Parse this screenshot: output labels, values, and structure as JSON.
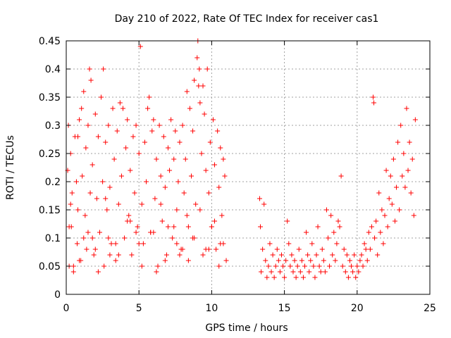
{
  "chart_data": {
    "type": "scatter",
    "title": "Day 210 of 2022, Rate Of TEC Index for receiver cas1",
    "xlabel": "GPS time / hours",
    "ylabel": "ROTI / TECUs",
    "xlim": [
      0,
      25
    ],
    "ylim": [
      0,
      0.45
    ],
    "xticks": [
      "0",
      "5",
      "10",
      "15",
      "20",
      "25"
    ],
    "yticks": [
      "0",
      "0.05",
      "0.1",
      "0.15",
      "0.2",
      "0.25",
      "0.3",
      "0.35",
      "0.4",
      "0.45"
    ],
    "grid": true,
    "marker": "+",
    "color": "#ff0000",
    "series": [
      {
        "x": [
          0.1,
          0.15,
          0.2,
          0.3,
          0.35,
          0.4,
          0.5,
          0.6,
          0.7,
          0.75,
          0.8,
          0.9,
          1.0,
          1.05,
          1.1,
          1.2,
          1.3,
          1.35,
          1.4,
          1.5,
          1.6,
          1.65,
          1.7,
          1.8,
          1.9,
          2.0,
          2.1,
          2.2,
          2.3,
          2.4,
          2.5,
          2.55,
          2.6,
          2.7,
          2.8,
          2.9,
          3.0,
          3.1,
          3.2,
          3.3,
          3.4,
          3.5,
          3.6,
          3.7,
          3.8,
          3.9,
          4.0,
          4.1,
          4.2,
          4.3,
          4.4,
          4.5,
          4.6,
          4.7,
          4.8,
          4.9,
          5.0,
          5.1,
          5.2,
          5.3,
          5.4,
          5.5,
          5.6,
          5.7,
          5.8,
          5.9,
          6.0,
          6.1,
          6.2,
          6.3,
          6.4,
          6.5,
          6.6,
          6.7,
          6.8,
          6.9,
          7.0,
          7.1,
          7.2,
          7.3,
          7.4,
          7.5,
          7.6,
          7.7,
          7.8,
          7.9,
          8.0,
          8.1,
          8.2,
          8.3,
          8.4,
          8.5,
          8.6,
          8.7,
          8.8,
          8.9,
          9.0,
          9.05,
          9.1,
          9.15,
          9.2,
          9.3,
          9.4,
          9.5,
          9.6,
          9.7,
          9.8,
          9.9,
          10.0,
          10.1,
          10.2,
          10.3,
          10.4,
          10.5,
          10.6,
          10.7,
          10.8,
          10.9,
          11.0,
          0.3,
          0.8,
          1.2,
          2.2,
          2.7,
          3.4,
          4.2,
          5.2,
          5.8,
          6.5,
          7.0,
          7.8,
          8.3,
          8.7,
          9.2,
          9.6,
          10.2,
          10.6,
          0.2,
          0.9,
          1.5,
          2.0,
          2.9,
          3.6,
          4.4,
          5.0,
          6.0,
          6.8,
          7.4,
          8.0,
          8.8,
          9.4,
          10.0,
          10.8,
          0.5,
          1.8,
          3.0,
          4.8,
          6.2,
          7.6,
          8.4,
          9.8,
          10.5
        ],
        "y": [
          0.22,
          0.3,
          0.05,
          0.25,
          0.12,
          0.18,
          0.04,
          0.28,
          0.2,
          0.09,
          0.15,
          0.31,
          0.06,
          0.33,
          0.21,
          0.36,
          0.14,
          0.26,
          0.08,
          0.3,
          0.4,
          0.18,
          0.38,
          0.23,
          0.07,
          0.32,
          0.17,
          0.28,
          0.11,
          0.35,
          0.2,
          0.4,
          0.05,
          0.27,
          0.15,
          0.3,
          0.19,
          0.09,
          0.33,
          0.24,
          0.06,
          0.29,
          0.16,
          0.34,
          0.21,
          0.33,
          0.1,
          0.26,
          0.31,
          0.14,
          0.22,
          0.07,
          0.28,
          0.18,
          0.3,
          0.12,
          0.25,
          0.44,
          0.16,
          0.09,
          0.27,
          0.2,
          0.33,
          0.35,
          0.11,
          0.29,
          0.31,
          0.17,
          0.24,
          0.05,
          0.3,
          0.21,
          0.13,
          0.28,
          0.19,
          0.07,
          0.26,
          0.22,
          0.31,
          0.1,
          0.24,
          0.29,
          0.15,
          0.2,
          0.27,
          0.08,
          0.3,
          0.18,
          0.24,
          0.36,
          0.12,
          0.33,
          0.21,
          0.29,
          0.38,
          0.16,
          0.42,
          0.45,
          0.37,
          0.4,
          0.34,
          0.25,
          0.37,
          0.32,
          0.22,
          0.4,
          0.18,
          0.27,
          0.12,
          0.31,
          0.23,
          0.08,
          0.29,
          0.19,
          0.26,
          0.14,
          0.24,
          0.21,
          0.06,
          0.16,
          0.28,
          0.1,
          0.04,
          0.17,
          0.09,
          0.13,
          0.05,
          0.11,
          0.16,
          0.12,
          0.07,
          0.14,
          0.1,
          0.15,
          0.08,
          0.13,
          0.09,
          0.12,
          0.06,
          0.11,
          0.08,
          0.1,
          0.07,
          0.13,
          0.09,
          0.11,
          0.06,
          0.12,
          0.08,
          0.1,
          0.07,
          0.12,
          0.09,
          0.05,
          0.1,
          0.07,
          0.11,
          0.04,
          0.09,
          0.06,
          0.08,
          0.05
        ]
      },
      {
        "x": [
          13.3,
          13.35,
          13.4,
          13.5,
          13.6,
          13.7,
          13.8,
          13.9,
          14.0,
          14.1,
          14.2,
          14.3,
          14.4,
          14.5,
          14.6,
          14.7,
          14.8,
          14.9,
          15.0,
          15.1,
          15.2,
          15.3,
          15.4,
          15.5,
          15.6,
          15.7,
          15.8,
          15.9,
          16.0,
          16.1,
          16.2,
          16.3,
          16.4,
          16.5,
          16.6,
          16.7,
          16.8,
          16.9,
          17.0,
          17.1,
          17.2,
          17.3,
          17.4,
          17.5,
          17.6,
          17.7,
          17.8,
          17.9,
          18.0,
          18.1,
          18.2,
          18.3,
          18.4,
          18.5,
          18.6,
          18.7,
          18.8,
          18.9,
          19.0,
          19.1,
          19.2,
          19.3,
          19.4,
          19.5,
          19.6,
          19.7,
          19.8,
          19.9,
          20.0,
          20.1,
          20.2,
          20.3,
          20.4,
          20.5,
          20.6,
          20.7,
          20.8,
          20.9,
          21.0,
          21.1,
          21.15,
          21.2,
          21.3,
          21.4,
          21.5,
          21.6,
          21.7,
          21.8,
          21.9,
          22.0,
          22.1,
          22.2,
          22.3,
          22.4,
          22.5,
          22.6,
          22.7,
          22.8,
          22.9,
          23.0,
          23.1,
          23.2,
          23.3,
          23.4,
          23.5,
          23.6,
          23.7,
          23.8,
          23.9,
          24.0
        ],
        "y": [
          0.17,
          0.12,
          0.04,
          0.08,
          0.16,
          0.06,
          0.03,
          0.05,
          0.09,
          0.04,
          0.07,
          0.03,
          0.05,
          0.08,
          0.06,
          0.04,
          0.07,
          0.05,
          0.03,
          0.06,
          0.13,
          0.09,
          0.05,
          0.07,
          0.04,
          0.06,
          0.03,
          0.05,
          0.08,
          0.04,
          0.06,
          0.03,
          0.05,
          0.11,
          0.07,
          0.04,
          0.06,
          0.09,
          0.05,
          0.03,
          0.07,
          0.12,
          0.05,
          0.04,
          0.08,
          0.06,
          0.04,
          0.15,
          0.1,
          0.05,
          0.14,
          0.07,
          0.11,
          0.06,
          0.09,
          0.13,
          0.12,
          0.21,
          0.05,
          0.08,
          0.04,
          0.07,
          0.03,
          0.06,
          0.05,
          0.04,
          0.07,
          0.03,
          0.05,
          0.04,
          0.06,
          0.07,
          0.05,
          0.09,
          0.08,
          0.06,
          0.11,
          0.08,
          0.12,
          0.35,
          0.34,
          0.1,
          0.13,
          0.07,
          0.18,
          0.11,
          0.15,
          0.09,
          0.14,
          0.22,
          0.12,
          0.17,
          0.21,
          0.16,
          0.24,
          0.13,
          0.19,
          0.27,
          0.15,
          0.3,
          0.21,
          0.25,
          0.19,
          0.33,
          0.22,
          0.27,
          0.18,
          0.24,
          0.14,
          0.31
        ]
      }
    ]
  }
}
